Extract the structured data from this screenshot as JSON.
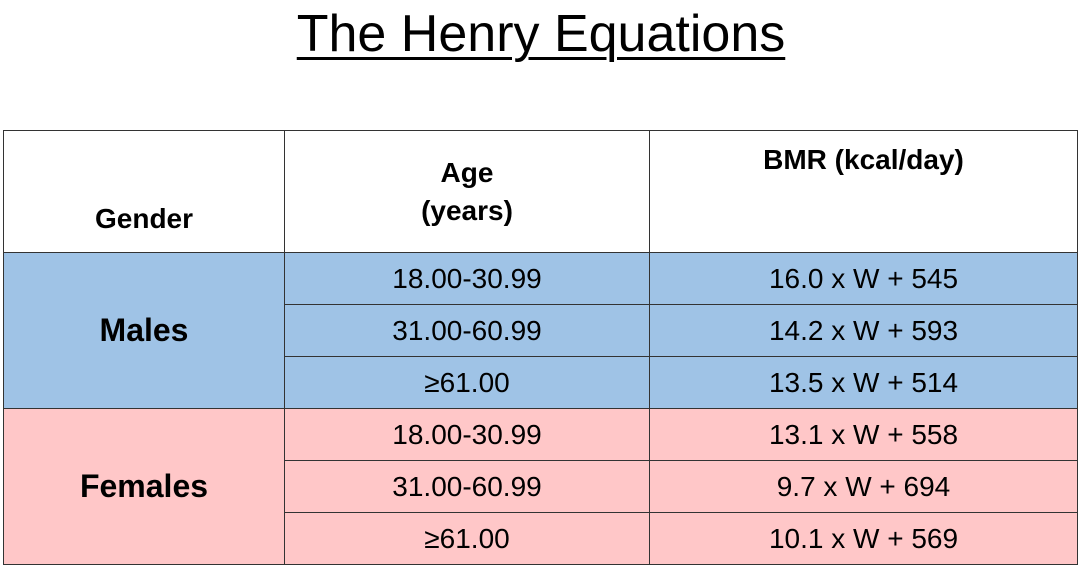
{
  "header": {
    "title": "The Henry Equations"
  },
  "table": {
    "columns": [
      "Gender",
      "Age\n(years)",
      "BMR (kcal/day)"
    ],
    "groups": [
      {
        "gender": "Males",
        "rows": [
          [
            "18.00-30.99",
            "16.0 x W + 545"
          ],
          [
            "31.00-60.99",
            "14.2 x W + 593"
          ],
          [
            "≥61.00",
            "13.5 x W + 514"
          ]
        ]
      },
      {
        "gender": "Females",
        "rows": [
          [
            "18.00-30.99",
            "13.1 x W + 558"
          ],
          [
            "31.00-60.99",
            "9.7 x W + 694"
          ],
          [
            "≥61.00",
            "10.1 x W + 569"
          ]
        ]
      }
    ]
  }
}
